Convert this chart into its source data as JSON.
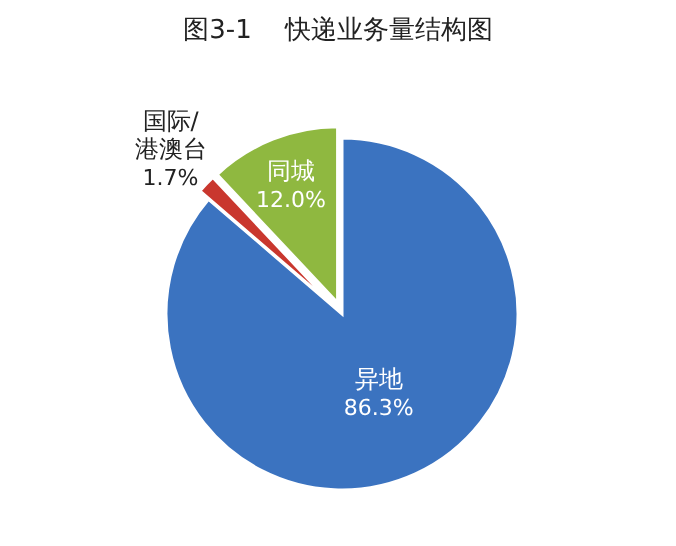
{
  "chart_data": {
    "type": "pie",
    "title": "图3-1    快递业务量结构图",
    "categories": [
      "异地",
      "国际/港澳台",
      "同城"
    ],
    "values": [
      86.3,
      1.7,
      12.0
    ],
    "colors": [
      "#3b73c0",
      "#c9372e",
      "#8fb840"
    ],
    "value_labels": [
      "86.3%",
      "1.7%",
      "12.0%"
    ]
  }
}
